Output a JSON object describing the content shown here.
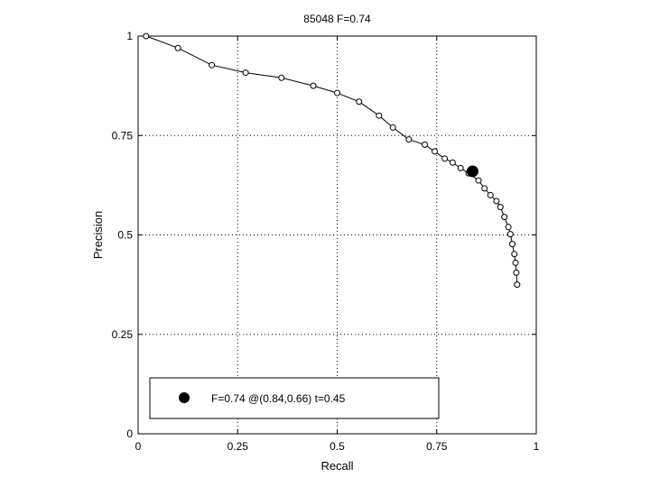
{
  "chart_data": {
    "type": "line",
    "title": "85048 F=0.74",
    "xlabel": "Recall",
    "ylabel": "Precision",
    "xlim": [
      0,
      1
    ],
    "ylim": [
      0,
      1
    ],
    "grid": true,
    "x_ticks": [
      0,
      0.25,
      0.5,
      0.75,
      1
    ],
    "x_tick_labels": [
      "0",
      "0.25",
      "0.5",
      "0.75",
      "1"
    ],
    "y_ticks": [
      0,
      0.25,
      0.5,
      0.75,
      1
    ],
    "y_tick_labels": [
      "0",
      "0.25",
      "0.5",
      "0.75",
      "1"
    ],
    "series": [
      {
        "x": [
          0.02,
          0.1,
          0.185,
          0.27,
          0.36,
          0.44,
          0.5,
          0.555,
          0.605,
          0.64,
          0.68,
          0.72,
          0.745,
          0.77,
          0.79,
          0.81,
          0.83,
          0.855,
          0.87,
          0.885,
          0.9,
          0.91,
          0.92,
          0.93,
          0.935,
          0.94,
          0.945,
          0.948,
          0.95,
          0.952
        ],
        "y": [
          1.0,
          0.97,
          0.927,
          0.908,
          0.895,
          0.875,
          0.857,
          0.835,
          0.8,
          0.77,
          0.74,
          0.727,
          0.71,
          0.692,
          0.682,
          0.668,
          0.655,
          0.637,
          0.617,
          0.6,
          0.585,
          0.57,
          0.545,
          0.52,
          0.502,
          0.477,
          0.452,
          0.43,
          0.405,
          0.375
        ],
        "marker": "open-circle",
        "color": "#000000"
      }
    ],
    "highlight": {
      "x": 0.84,
      "y": 0.66,
      "marker": "filled-circle",
      "color": "#000000"
    },
    "legend": {
      "position": "bottom-left",
      "entries": [
        "F=0.74 @(0.84,0.66) t=0.45"
      ]
    }
  }
}
